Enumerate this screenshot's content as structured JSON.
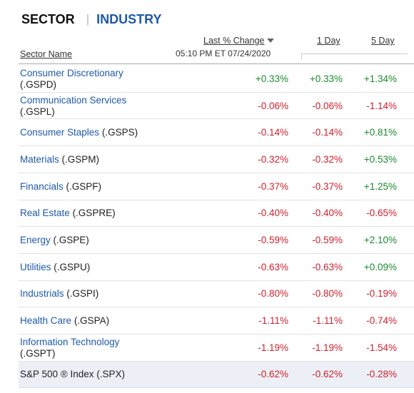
{
  "tabs": {
    "sector": "SECTOR",
    "separator": "|",
    "industry": "INDUSTRY"
  },
  "headers": {
    "last_change": "Last % Change",
    "one_day": "1 Day",
    "five_day": "5 Day",
    "sector_name": "Sector Name",
    "timestamp": "05:10 PM ET 07/24/2020"
  },
  "colors": {
    "positive": "#1a8a2e",
    "negative": "#d0202e",
    "link": "#1f5aa8"
  },
  "rows": [
    {
      "line1": "Consumer Discretionary",
      "line2": "(.GSPD)",
      "last": "+0.33%",
      "d1": "+0.33%",
      "d5": "+1.34%"
    },
    {
      "line1": "Communication Services",
      "line2": "(.GSPL)",
      "last": "-0.06%",
      "d1": "-0.06%",
      "d5": "-1.14%"
    },
    {
      "line1": "Consumer Staples",
      "sym": "(.GSPS)",
      "last": "-0.14%",
      "d1": "-0.14%",
      "d5": "+0.81%"
    },
    {
      "line1": "Materials",
      "sym": "(.GSPM)",
      "last": "-0.32%",
      "d1": "-0.32%",
      "d5": "+0.53%"
    },
    {
      "line1": "Financials",
      "sym": "(.GSPF)",
      "last": "-0.37%",
      "d1": "-0.37%",
      "d5": "+1.25%"
    },
    {
      "line1": "Real Estate",
      "sym": "(.GSPRE)",
      "last": "-0.40%",
      "d1": "-0.40%",
      "d5": "-0.65%"
    },
    {
      "line1": "Energy",
      "sym": "(.GSPE)",
      "last": "-0.59%",
      "d1": "-0.59%",
      "d5": "+2.10%"
    },
    {
      "line1": "Utilities",
      "sym": "(.GSPU)",
      "last": "-0.63%",
      "d1": "-0.63%",
      "d5": "+0.09%"
    },
    {
      "line1": "Industrials",
      "sym": "(.GSPI)",
      "last": "-0.80%",
      "d1": "-0.80%",
      "d5": "-0.19%"
    },
    {
      "line1": "Health Care",
      "sym": "(.GSPA)",
      "last": "-1.11%",
      "d1": "-1.11%",
      "d5": "-0.74%"
    },
    {
      "line1": "Information Technology",
      "line2": "(.GSPT)",
      "last": "-1.19%",
      "d1": "-1.19%",
      "d5": "-1.54%"
    },
    {
      "line1": "S&P 500 ® Index (.SPX)",
      "last": "-0.62%",
      "d1": "-0.62%",
      "d5": "-0.28%"
    }
  ]
}
